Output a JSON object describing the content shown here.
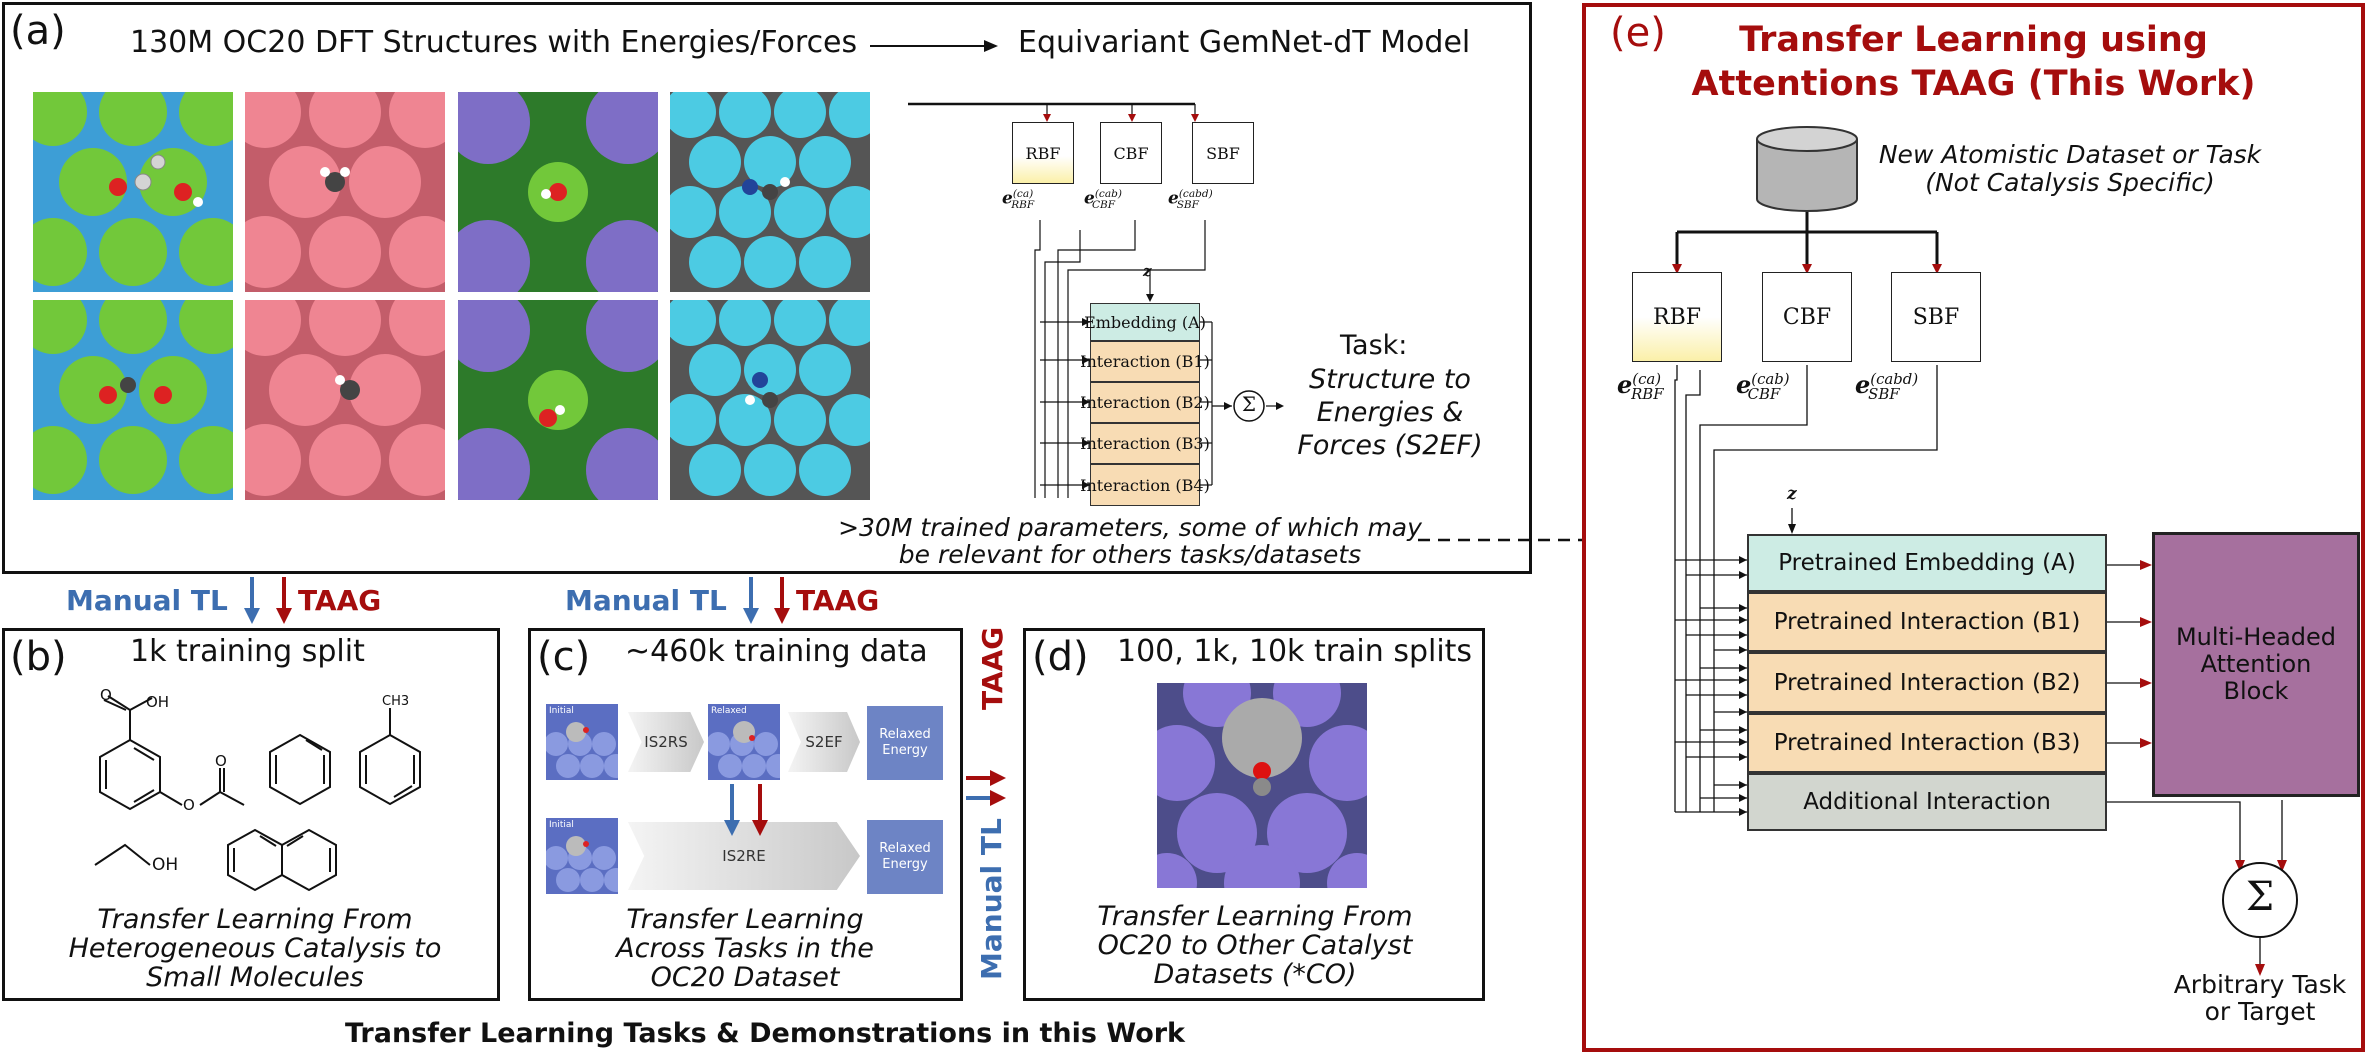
{
  "colors": {
    "taag_red": "#a50d0d",
    "manual_blue": "#3d6eb0",
    "embedding_teal": "#cdece4",
    "interaction_peach": "#f8dcb4",
    "additional_gray": "#d2d6cf",
    "attention_purple": "#a6709e",
    "blue_box": "#6d84c5"
  },
  "panel_a": {
    "label": "(a)",
    "title_left": "130M OC20 DFT Structures with Energies/Forces",
    "title_right": "Equivariant GemNet-dT Model",
    "z_label": "z",
    "bases": [
      {
        "name": "RBF",
        "sup": "(ca)",
        "sub": "RBF"
      },
      {
        "name": "CBF",
        "sup": "(cab)",
        "sub": "CBF"
      },
      {
        "name": "SBF",
        "sup": "(cabd)",
        "sub": "SBF"
      }
    ],
    "blocks": [
      {
        "name": "Embedding",
        "tag": "(A)"
      },
      {
        "name": "Interaction",
        "tag": "(B1)"
      },
      {
        "name": "Interaction",
        "tag": "(B2)"
      },
      {
        "name": "Interaction",
        "tag": "(B3)"
      },
      {
        "name": "Interaction",
        "tag": "(B4)"
      }
    ],
    "sum_symbol": "Σ",
    "task_label": "Task:",
    "task_lines": [
      "Structure to",
      "Energies &",
      "Forces (S2EF)"
    ],
    "params_line1": ">30M trained parameters, some of which may",
    "params_line2": "be relevant for others tasks/datasets"
  },
  "transfer_labels": {
    "manual": "Manual TL",
    "taag": "TAAG"
  },
  "panel_b": {
    "label": "(b)",
    "title": "1k training split",
    "oh_label": "OH",
    "oh_label2": "OH",
    "caption": [
      "Transfer Learning From",
      "Heterogeneous Catalysis to",
      "Small Molecules"
    ]
  },
  "panel_c": {
    "label": "(c)",
    "title": "~460k training data",
    "initial": "Initial",
    "relaxed": "Relaxed",
    "is2rs": "IS2RS",
    "s2ef": "S2EF",
    "is2re": "IS2RE",
    "relaxed_energy": "Relaxed Energy",
    "caption": [
      "Transfer Learning",
      "Across Tasks in the",
      "OC20 Dataset"
    ]
  },
  "panel_d": {
    "label": "(d)",
    "title": "100, 1k, 10k train splits",
    "caption": [
      "Transfer Learning From",
      "OC20 to Other Catalyst",
      "Datasets (*CO)"
    ]
  },
  "panel_e": {
    "label": "(e)",
    "title_line1": "Transfer Learning using",
    "title_line2": "Attentions TAAG (This Work)",
    "dataset_line1": "New Atomistic Dataset or Task",
    "dataset_line2": "(Not Catalysis Specific)",
    "z_label": "z",
    "blocks": [
      "Pretrained Embedding (A)",
      "Pretrained Interaction (B1)",
      "Pretrained Interaction (B2)",
      "Pretrained Interaction (B3)",
      "Additional Interaction"
    ],
    "attention": [
      "Multi-Headed",
      "Attention",
      "Block"
    ],
    "sum_symbol": "Σ",
    "output_line1": "Arbitrary Task",
    "output_line2": "or Target"
  },
  "footer": "Transfer Learning Tasks & Demonstrations in this Work"
}
